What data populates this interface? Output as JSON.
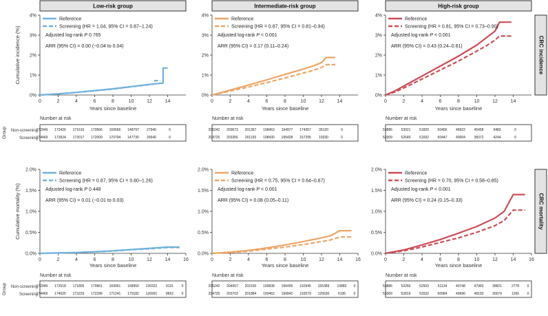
{
  "colors": {
    "low": "#6fb1dd",
    "intermediate": "#efa465",
    "high": "#cc4c56",
    "stripe": "#e3e3e3"
  },
  "columns": [
    "Low-risk group",
    "Intermediate-risk group",
    "High-risk group"
  ],
  "row_labels": [
    "CRC incidence",
    "CRC mortality"
  ],
  "group_axis_label": "Group",
  "risk_table": {
    "title": "Number at risk",
    "row_names": [
      "Non-screening",
      "Screening"
    ]
  },
  "legend": {
    "reference": "Reference"
  },
  "chart_data": [
    {
      "type": "line",
      "row": 0,
      "col": 0,
      "group": "Low-risk group",
      "outcome": "CRC incidence",
      "title": "Low-risk group",
      "xlabel": "Years since baseline",
      "ylabel": "Cumulative incidence (%)",
      "xlim": [
        0,
        16
      ],
      "xticks": [
        0,
        2,
        4,
        6,
        8,
        10,
        12,
        14
      ],
      "ylim": [
        0,
        4
      ],
      "yticks": [
        0,
        1,
        2,
        3,
        4
      ],
      "ytick_labels": [
        "0%",
        "1%",
        "2%",
        "3%",
        "4%"
      ],
      "color": "#6fb1dd",
      "legend": [
        "Reference",
        "Screening (HR = 1.04, 95% CI = 0.87–1.24)"
      ],
      "logrank": "0.765",
      "arr": "ARR (95% CI) = 0.00 (−0.04 to 0.04)",
      "series": [
        {
          "name": "Reference",
          "x": [
            0,
            2,
            4,
            6,
            8,
            10,
            12,
            13.5,
            13.5,
            14
          ],
          "y": [
            0,
            0.06,
            0.13,
            0.22,
            0.31,
            0.42,
            0.53,
            0.6,
            1.35,
            1.35
          ]
        },
        {
          "name": "Screening",
          "x": [
            0,
            2,
            4,
            6,
            8,
            10,
            12,
            12.6,
            12.6,
            13.2
          ],
          "y": [
            0,
            0.06,
            0.13,
            0.21,
            0.3,
            0.41,
            0.52,
            0.56,
            0.72,
            0.72
          ]
        }
      ],
      "risk_times": [
        0,
        2,
        4,
        6,
        8,
        10,
        12,
        14
      ],
      "risk": {
        "Non-screening": [
          "172949",
          "172426",
          "171616",
          "170566",
          "169566",
          "148797",
          "27940",
          "0"
        ],
        "Screening": [
          "174469",
          "173924",
          "173017",
          "172009",
          "170794",
          "147730",
          "26640",
          "0"
        ]
      }
    },
    {
      "type": "line",
      "row": 0,
      "col": 1,
      "group": "Intermediate-risk group",
      "outcome": "CRC incidence",
      "title": "Intermediate-risk group",
      "xlabel": "Years since baseline",
      "ylabel": "",
      "xlim": [
        0,
        16
      ],
      "xticks": [
        0,
        2,
        4,
        6,
        8,
        10,
        12,
        14
      ],
      "ylim": [
        0,
        4
      ],
      "yticks": [
        0,
        1,
        2,
        3,
        4
      ],
      "ytick_labels": [
        "0%",
        "1%",
        "2%",
        "3%",
        "4%"
      ],
      "color": "#efa465",
      "legend": [
        "Reference",
        "Screening (HR = 0.87, 95% CI = 0.81–0.94)"
      ],
      "logrank": "< 0.001",
      "arr": "ARR (95% CI) = 0.17 (0.11–0.24)",
      "series": [
        {
          "name": "Reference",
          "x": [
            0,
            2,
            4,
            6,
            8,
            10,
            11,
            12,
            12.5,
            13.5
          ],
          "y": [
            0,
            0.25,
            0.5,
            0.76,
            1.03,
            1.3,
            1.44,
            1.62,
            1.88,
            1.88
          ]
        },
        {
          "name": "Screening",
          "x": [
            0,
            2,
            4,
            6,
            8,
            10,
            11,
            12,
            12.5,
            13.5
          ],
          "y": [
            0,
            0.2,
            0.4,
            0.62,
            0.85,
            1.1,
            1.22,
            1.38,
            1.52,
            1.52
          ]
        }
      ],
      "risk_times": [
        0,
        2,
        4,
        6,
        8,
        10,
        12,
        14
      ],
      "risk": {
        "Non-screening": [
          "205242",
          "203673",
          "201367",
          "198463",
          "194977",
          "174357",
          "35120",
          "0"
        ],
        "Screening": [
          "204725",
          "203356",
          "201193",
          "198430",
          "195428",
          "157295",
          "19330",
          "0"
        ]
      }
    },
    {
      "type": "line",
      "row": 0,
      "col": 2,
      "group": "High-risk group",
      "outcome": "CRC incidence",
      "title": "High-risk group",
      "xlabel": "Years since baseline",
      "ylabel": "",
      "xlim": [
        0,
        16
      ],
      "xticks": [
        0,
        2,
        4,
        6,
        8,
        10,
        12,
        14
      ],
      "ylim": [
        0,
        4
      ],
      "yticks": [
        0,
        1,
        2,
        3,
        4
      ],
      "ytick_labels": [
        "0%",
        "1%",
        "2%",
        "3%",
        "4%"
      ],
      "color": "#cc4c56",
      "legend": [
        "Reference",
        "Screening (HR = 0.81, 95% CI = 0.73–0.90)"
      ],
      "logrank": "< 0.001",
      "arr": "ARR (95% CI) = 0.43 (0.24–0.61)",
      "series": [
        {
          "name": "Reference",
          "x": [
            0,
            1,
            2,
            4,
            6,
            8,
            10,
            11,
            12,
            12.5,
            13.8
          ],
          "y": [
            0,
            0.2,
            0.45,
            0.95,
            1.45,
            1.95,
            2.5,
            2.85,
            3.2,
            3.65,
            3.65
          ]
        },
        {
          "name": "Screening",
          "x": [
            0,
            1,
            2,
            4,
            6,
            8,
            10,
            11,
            12,
            12.5,
            13.8
          ],
          "y": [
            0,
            0.15,
            0.35,
            0.8,
            1.25,
            1.7,
            2.2,
            2.45,
            2.75,
            2.95,
            2.95
          ]
        }
      ],
      "risk_times": [
        0,
        2,
        4,
        6,
        8,
        10,
        12,
        14
      ],
      "risk": {
        "Non-screening": [
          "53886",
          "53021",
          "51820",
          "50456",
          "48922",
          "45458",
          "9483",
          "0"
        ],
        "Screening": [
          "53309",
          "52640",
          "51692",
          "50447",
          "49004",
          "38372",
          "4244",
          "0"
        ]
      }
    },
    {
      "type": "line",
      "row": 1,
      "col": 0,
      "group": "Low-risk group",
      "outcome": "CRC mortality",
      "title": "",
      "xlabel": "Years since baseline",
      "ylabel": "Cumulative mortality (%)",
      "xlim": [
        0,
        16
      ],
      "xticks": [
        0,
        2,
        4,
        6,
        8,
        10,
        12,
        14,
        16
      ],
      "ylim": [
        0,
        2
      ],
      "yticks": [
        0,
        0.5,
        1,
        1.5,
        2
      ],
      "ytick_labels": [
        "0.0%",
        "0.5%",
        "1.0%",
        "1.5%",
        "2.0%"
      ],
      "color": "#6fb1dd",
      "legend": [
        "Reference",
        "Screening (HR = 0.87, 95% CI = 0.60–1.26)"
      ],
      "logrank": "0.448",
      "arr": "ARR (95% CI) = 0.01 (−0.01 to 0.03)",
      "series": [
        {
          "name": "Reference",
          "x": [
            0,
            2,
            4,
            6,
            8,
            10,
            12,
            14,
            15.3
          ],
          "y": [
            0,
            0.01,
            0.02,
            0.04,
            0.06,
            0.09,
            0.12,
            0.15,
            0.15
          ]
        },
        {
          "name": "Screening",
          "x": [
            0,
            2,
            4,
            6,
            8,
            10,
            12,
            14,
            15.3
          ],
          "y": [
            0,
            0.01,
            0.02,
            0.035,
            0.055,
            0.085,
            0.11,
            0.14,
            0.14
          ]
        }
      ],
      "risk_times": [
        0,
        2,
        4,
        6,
        8,
        10,
        12,
        14,
        16
      ],
      "risk": {
        "Non-screening": [
          "172949",
          "172518",
          "171805",
          "170861",
          "169951",
          "168950",
          "130322",
          "9131",
          "0"
        ],
        "Screening": [
          "174469",
          "174025",
          "173229",
          "172296",
          "171241",
          "170182",
          "126991",
          "8652",
          "0"
        ]
      }
    },
    {
      "type": "line",
      "row": 1,
      "col": 1,
      "group": "Intermediate-risk group",
      "outcome": "CRC mortality",
      "title": "",
      "xlabel": "Years since baseline",
      "ylabel": "",
      "xlim": [
        0,
        16
      ],
      "xticks": [
        0,
        2,
        4,
        6,
        8,
        10,
        12,
        14,
        16
      ],
      "ylim": [
        0,
        2
      ],
      "yticks": [
        0,
        0.5,
        1,
        1.5,
        2
      ],
      "ytick_labels": [
        "0.0%",
        "0.5%",
        "1.0%",
        "1.5%",
        "2.0%"
      ],
      "color": "#efa465",
      "legend": [
        "Reference",
        "Screening (HR = 0.75, 95% CI = 0.64–0.87)"
      ],
      "logrank": "< 0.001",
      "arr": "ARR (95% CI) = 0.08 (0.05–0.11)",
      "series": [
        {
          "name": "Reference",
          "x": [
            0,
            2,
            4,
            6,
            8,
            10,
            12,
            13,
            14,
            15.3
          ],
          "y": [
            0,
            0.03,
            0.07,
            0.13,
            0.2,
            0.28,
            0.37,
            0.42,
            0.54,
            0.54
          ]
        },
        {
          "name": "Screening",
          "x": [
            0,
            2,
            4,
            6,
            8,
            10,
            12,
            13,
            14,
            15.3
          ],
          "y": [
            0,
            0.02,
            0.05,
            0.1,
            0.15,
            0.21,
            0.28,
            0.32,
            0.39,
            0.39
          ]
        }
      ],
      "risk_times": [
        0,
        2,
        4,
        6,
        8,
        10,
        12,
        14,
        16
      ],
      "risk": {
        "Non-screening": [
          "205242",
          "204067",
          "202150",
          "199608",
          "196495",
          "192945",
          "155389",
          "10883",
          "0"
        ],
        "Screening": [
          "204725",
          "203703",
          "201884",
          "199462",
          "196842",
          "193579",
          "125630",
          "6195",
          "0"
        ]
      }
    },
    {
      "type": "line",
      "row": 1,
      "col": 2,
      "group": "High-risk group",
      "outcome": "CRC mortality",
      "title": "",
      "xlabel": "Years since baseline",
      "ylabel": "",
      "xlim": [
        0,
        16
      ],
      "xticks": [
        0,
        2,
        4,
        6,
        8,
        10,
        12,
        14,
        16
      ],
      "ylim": [
        0,
        2
      ],
      "yticks": [
        0,
        0.5,
        1,
        1.5,
        2
      ],
      "ytick_labels": [
        "0.0%",
        "0.5%",
        "1.0%",
        "1.5%",
        "2.0%"
      ],
      "color": "#cc4c56",
      "legend": [
        "Reference",
        "Screening (HR = 0.70, 95% CI = 0.58–0.85)"
      ],
      "logrank": "< 0.001",
      "arr": "ARR (95% CI) = 0.24 (0.15–0.33)",
      "series": [
        {
          "name": "Reference",
          "x": [
            0,
            2,
            4,
            6,
            8,
            10,
            12,
            13,
            14,
            15.3
          ],
          "y": [
            0,
            0.08,
            0.2,
            0.33,
            0.48,
            0.64,
            0.84,
            1.0,
            1.4,
            1.4
          ]
        },
        {
          "name": "Screening",
          "x": [
            0,
            2,
            4,
            6,
            8,
            10,
            12,
            13,
            14,
            15.3
          ],
          "y": [
            0,
            0.06,
            0.15,
            0.26,
            0.37,
            0.5,
            0.66,
            0.78,
            1.03,
            1.03
          ]
        }
      ],
      "risk_times": [
        0,
        2,
        4,
        6,
        8,
        10,
        12,
        14,
        16
      ],
      "risk": {
        "Non-screening": [
          "53886",
          "53260",
          "52503",
          "51134",
          "49748",
          "47960",
          "38821",
          "2778",
          "0"
        ],
        "Screening": [
          "53309",
          "52819",
          "52032",
          "50984",
          "49696",
          "48193",
          "30074",
          "1266",
          "0"
        ]
      }
    }
  ]
}
